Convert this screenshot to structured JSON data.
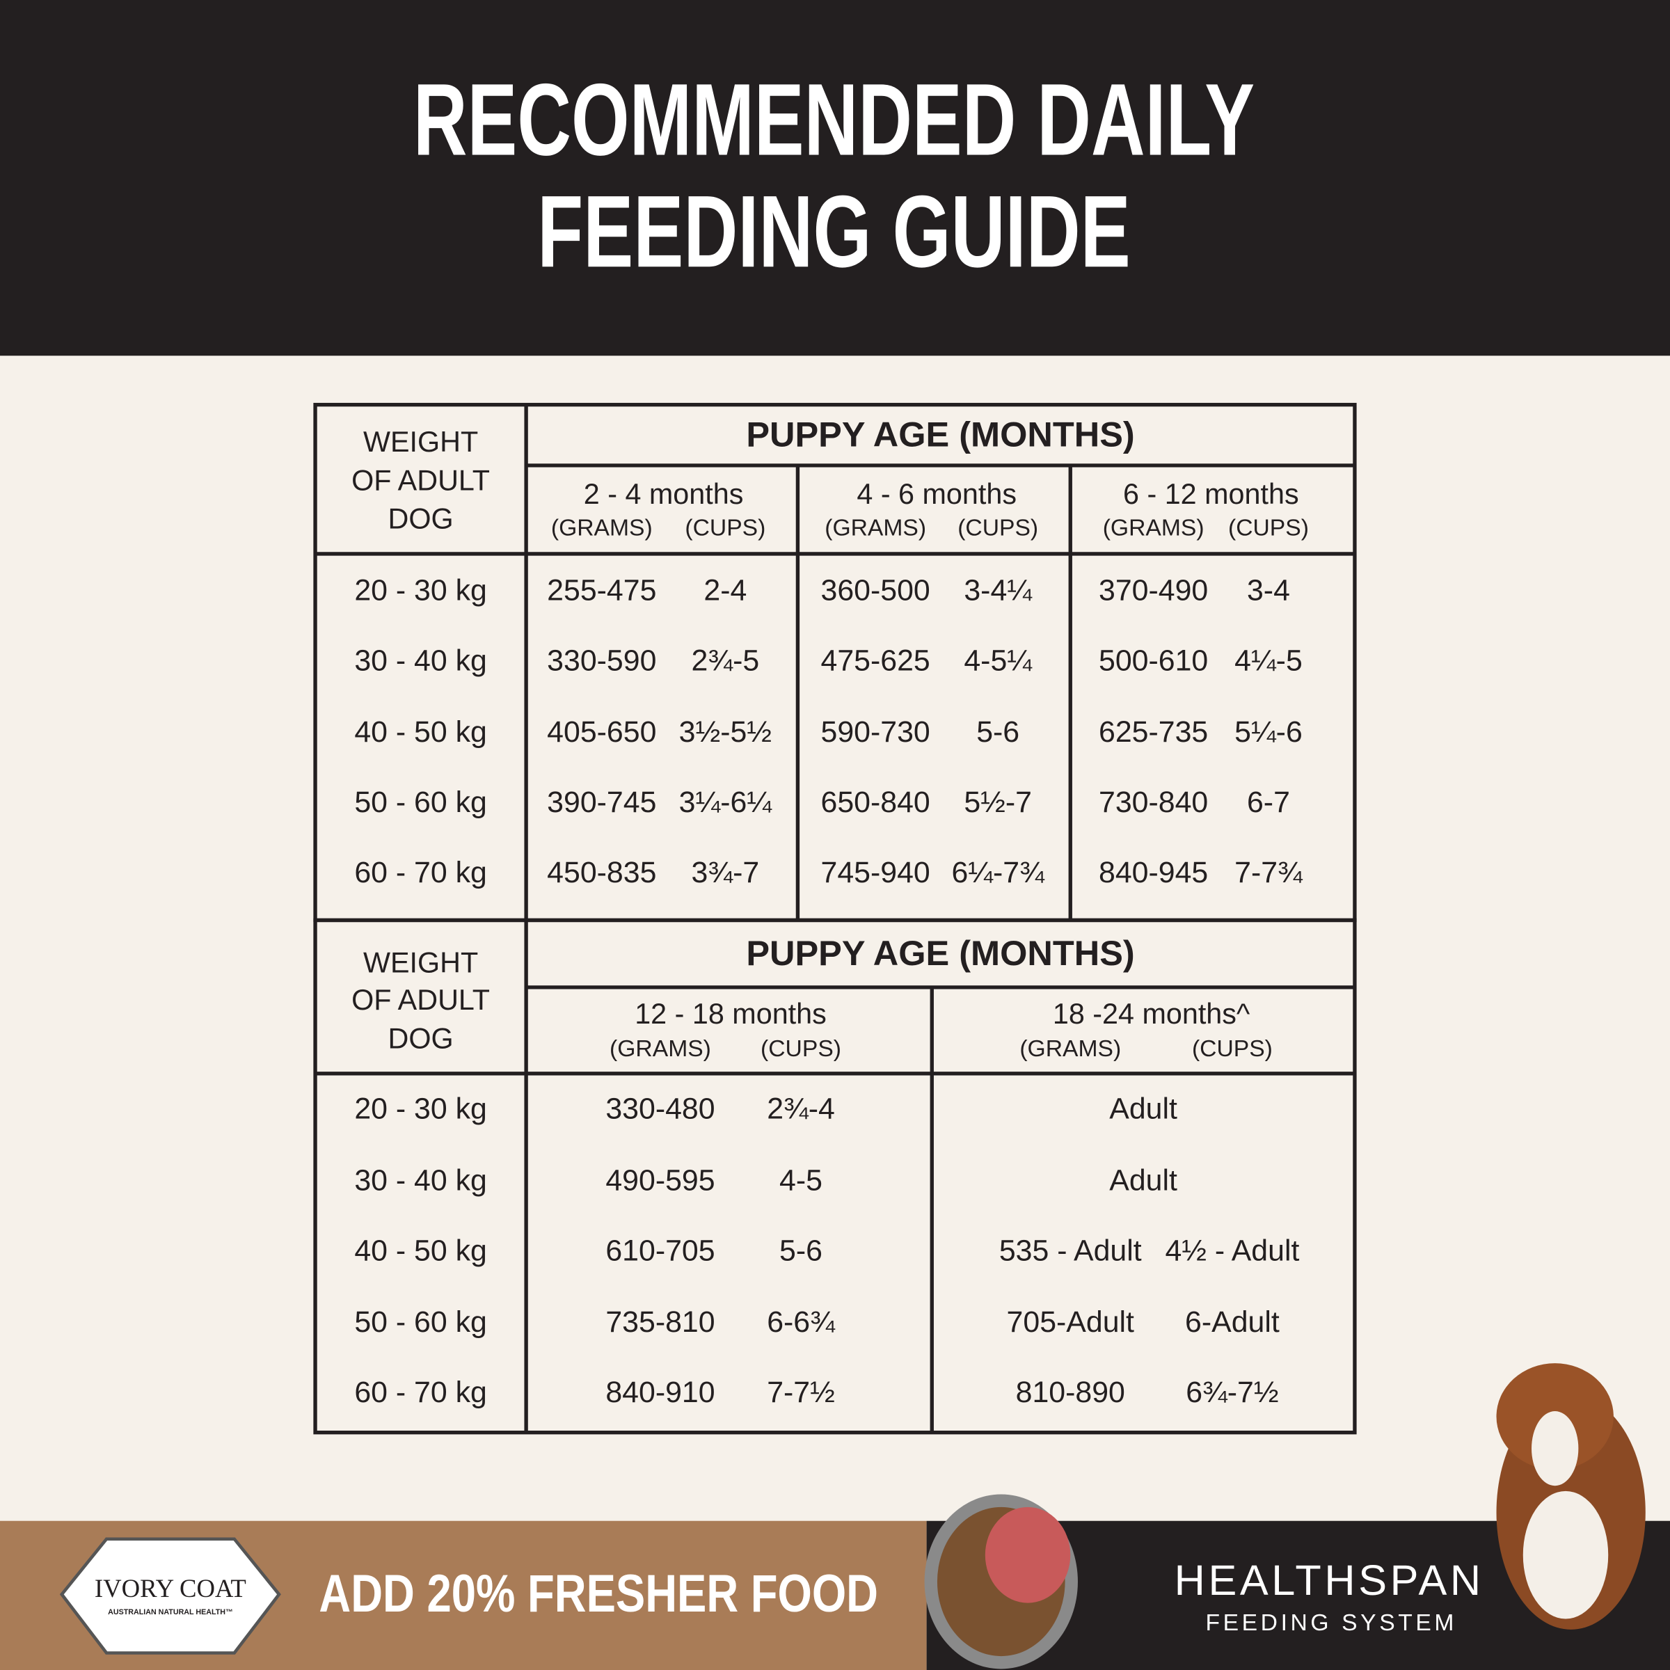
{
  "header": {
    "title": [
      "RECOMMENDED DAILY",
      "FEEDING GUIDE"
    ]
  },
  "tables": [
    {
      "weight_header": [
        "WEIGHT",
        "OF ADULT",
        "DOG"
      ],
      "group_header": "PUPPY AGE (MONTHS)",
      "columns": [
        {
          "label": "2 - 4 months",
          "units": [
            "(GRAMS)",
            "(CUPS)"
          ]
        },
        {
          "label": "4 - 6 months",
          "units": [
            "(GRAMS)",
            "(CUPS)"
          ]
        },
        {
          "label": "6 - 12 months",
          "units": [
            "(GRAMS)",
            "(CUPS)"
          ]
        }
      ],
      "rows": [
        {
          "weight": "20 - 30 kg",
          "cells": [
            [
              "255-475",
              "2-4"
            ],
            [
              "360-500",
              "3-4¼"
            ],
            [
              "370-490",
              "3-4"
            ]
          ]
        },
        {
          "weight": "30 - 40 kg",
          "cells": [
            [
              "330-590",
              "2¾-5"
            ],
            [
              "475-625",
              "4-5¼"
            ],
            [
              "500-610",
              "4¼-5"
            ]
          ]
        },
        {
          "weight": "40 - 50 kg",
          "cells": [
            [
              "405-650",
              "3½-5½"
            ],
            [
              "590-730",
              "5-6"
            ],
            [
              "625-735",
              "5¼-6"
            ]
          ]
        },
        {
          "weight": "50 - 60 kg",
          "cells": [
            [
              "390-745",
              "3¼-6¼"
            ],
            [
              "650-840",
              "5½-7"
            ],
            [
              "730-840",
              "6-7"
            ]
          ]
        },
        {
          "weight": "60 - 70 kg",
          "cells": [
            [
              "450-835",
              "3¾-7"
            ],
            [
              "745-940",
              "6¼-7¾"
            ],
            [
              "840-945",
              "7-7¾"
            ]
          ]
        }
      ]
    },
    {
      "weight_header": [
        "WEIGHT",
        "OF ADULT",
        "DOG"
      ],
      "group_header": "PUPPY AGE (MONTHS)",
      "columns": [
        {
          "label": "12 - 18 months",
          "units": [
            "(GRAMS)",
            "(CUPS)"
          ]
        },
        {
          "label": "18 -24 months^",
          "units": [
            "(GRAMS)",
            "(CUPS)"
          ]
        }
      ],
      "rows": [
        {
          "weight": "20 - 30 kg",
          "cells": [
            [
              "330-480",
              "2¾-4"
            ],
            [
              "Adult"
            ]
          ]
        },
        {
          "weight": "30 - 40 kg",
          "cells": [
            [
              "490-595",
              "4-5"
            ],
            [
              "Adult"
            ]
          ]
        },
        {
          "weight": "40 - 50 kg",
          "cells": [
            [
              "610-705",
              "5-6"
            ],
            [
              "535 - Adult",
              "4½ - Adult"
            ]
          ]
        },
        {
          "weight": "50 - 60 kg",
          "cells": [
            [
              "735-810",
              "6-6¾"
            ],
            [
              "705-Adult",
              "6-Adult"
            ]
          ]
        },
        {
          "weight": "60 - 70 kg",
          "cells": [
            [
              "840-910",
              "7-7½"
            ],
            [
              "810-890",
              "6¾-7½"
            ]
          ]
        }
      ]
    }
  ],
  "footer": {
    "logo": "IVORY COAT",
    "logo_sub": "AUSTRALIAN NATURAL HEALTH™",
    "tagline": "ADD 20% FRESHER FOOD",
    "brand": "HEALTHSPAN",
    "brand_sub": "FEEDING SYSTEM"
  }
}
